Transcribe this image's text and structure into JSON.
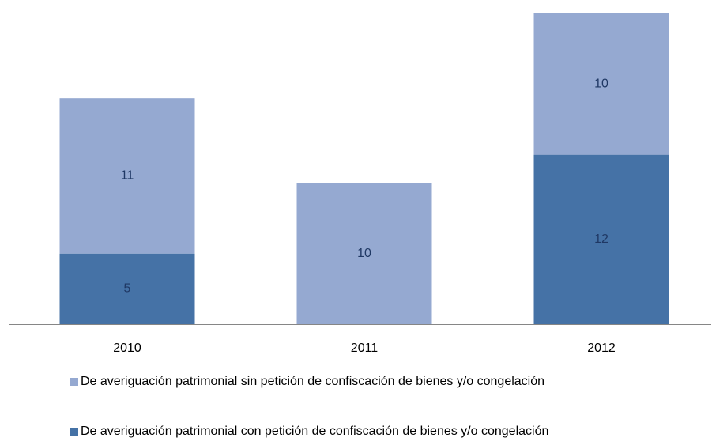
{
  "chart_data": {
    "type": "bar",
    "stacked": true,
    "categories": [
      "2010",
      "2011",
      "2012"
    ],
    "series": [
      {
        "name": "De averiguación patrimonial con petición de confiscación de bienes y/o congelación",
        "color": "#4572a6",
        "values": [
          5,
          null,
          12
        ]
      },
      {
        "name": "De averiguación patrimonial sin petición de confiscación de bienes y/o congelación",
        "color": "#95a9d1",
        "values": [
          11,
          10,
          10
        ]
      }
    ],
    "ylim": [
      0,
      22
    ],
    "grid": false
  }
}
